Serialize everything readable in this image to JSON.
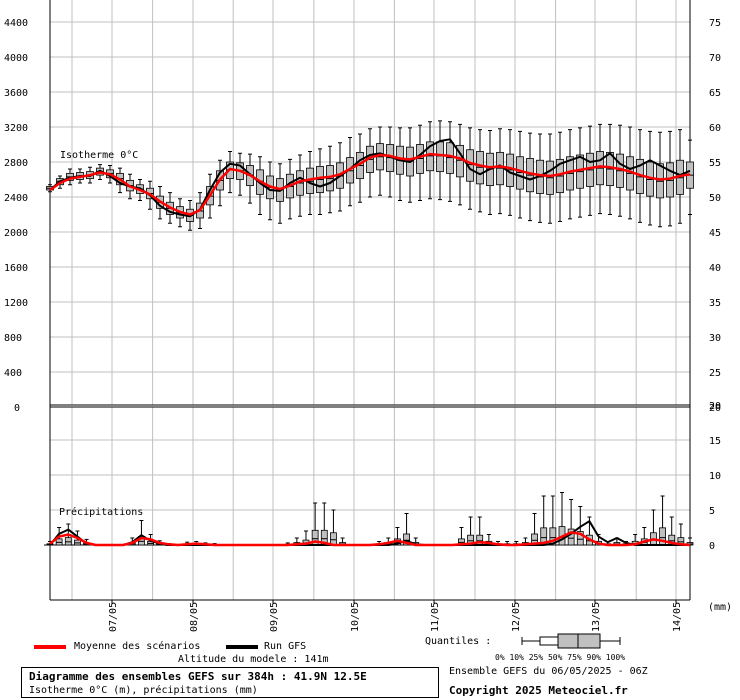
{
  "chart_data": [
    {
      "type": "boxplot+line",
      "panel": "isotherm",
      "title": "Isotherme 0°C",
      "ylim": [
        0,
        4600
      ],
      "yticks_left": [
        "4400",
        "4000",
        "3600",
        "3200",
        "2800",
        "2400",
        "2000",
        "1600",
        "1200",
        "800",
        "400",
        "0"
      ],
      "yticks_right": [
        "75",
        "70",
        "65",
        "60",
        "55",
        "50",
        "45",
        "40",
        "35",
        "30",
        "25",
        "20"
      ],
      "x_hours": [
        0,
        6,
        12,
        18,
        24,
        30,
        36,
        42,
        48,
        54,
        60,
        66,
        72,
        78,
        84,
        90,
        96,
        102,
        108,
        114,
        120,
        126,
        132,
        138,
        144,
        150,
        156,
        162,
        168,
        174,
        180,
        186,
        192,
        198,
        204,
        210,
        216,
        222,
        228,
        234,
        240,
        246,
        252,
        258,
        264,
        270,
        276,
        282,
        288,
        294,
        300,
        306,
        312,
        318,
        324,
        330,
        336,
        342,
        348,
        354,
        360,
        366,
        372,
        378,
        384
      ],
      "series": [
        {
          "name": "Moyenne des scénarios",
          "color": "#ff0000",
          "values": [
            2480,
            2560,
            2610,
            2630,
            2650,
            2680,
            2660,
            2600,
            2520,
            2480,
            2430,
            2350,
            2280,
            2230,
            2200,
            2250,
            2420,
            2600,
            2720,
            2700,
            2650,
            2580,
            2520,
            2490,
            2530,
            2580,
            2600,
            2620,
            2630,
            2660,
            2720,
            2780,
            2850,
            2880,
            2870,
            2840,
            2830,
            2860,
            2890,
            2880,
            2870,
            2840,
            2790,
            2760,
            2740,
            2750,
            2730,
            2700,
            2670,
            2650,
            2640,
            2660,
            2690,
            2710,
            2730,
            2750,
            2740,
            2720,
            2690,
            2650,
            2620,
            2600,
            2610,
            2640,
            2660
          ]
        },
        {
          "name": "Run GFS",
          "color": "#000000",
          "values": [
            2480,
            2580,
            2620,
            2640,
            2640,
            2700,
            2640,
            2560,
            2520,
            2500,
            2420,
            2300,
            2230,
            2200,
            2180,
            2260,
            2480,
            2680,
            2780,
            2760,
            2660,
            2560,
            2480,
            2470,
            2560,
            2620,
            2560,
            2520,
            2560,
            2640,
            2720,
            2820,
            2880,
            2900,
            2860,
            2820,
            2800,
            2880,
            2980,
            3040,
            3060,
            2900,
            2720,
            2660,
            2720,
            2760,
            2680,
            2640,
            2600,
            2640,
            2700,
            2780,
            2820,
            2860,
            2800,
            2820,
            2900,
            2780,
            2720,
            2760,
            2820,
            2760,
            2700,
            2650,
            2700
          ]
        }
      ],
      "boxes": [
        [
          2460,
          2480,
          2500,
          2520,
          2540
        ],
        [
          2500,
          2540,
          2580,
          2610,
          2640
        ],
        [
          2540,
          2590,
          2630,
          2670,
          2720
        ],
        [
          2560,
          2600,
          2640,
          2680,
          2720
        ],
        [
          2560,
          2610,
          2650,
          2690,
          2740
        ],
        [
          2600,
          2650,
          2690,
          2730,
          2770
        ],
        [
          2560,
          2620,
          2670,
          2710,
          2760
        ],
        [
          2450,
          2540,
          2610,
          2670,
          2730
        ],
        [
          2380,
          2470,
          2530,
          2590,
          2660
        ],
        [
          2360,
          2440,
          2490,
          2540,
          2600
        ],
        [
          2260,
          2380,
          2440,
          2500,
          2580
        ],
        [
          2150,
          2270,
          2340,
          2410,
          2520
        ],
        [
          2100,
          2200,
          2270,
          2340,
          2450
        ],
        [
          2060,
          2160,
          2220,
          2290,
          2380
        ],
        [
          2020,
          2120,
          2190,
          2260,
          2360
        ],
        [
          2040,
          2160,
          2240,
          2330,
          2450
        ],
        [
          2160,
          2310,
          2410,
          2520,
          2660
        ],
        [
          2300,
          2480,
          2590,
          2700,
          2820
        ],
        [
          2450,
          2610,
          2710,
          2800,
          2920
        ],
        [
          2420,
          2600,
          2700,
          2790,
          2900
        ],
        [
          2330,
          2530,
          2650,
          2760,
          2890
        ],
        [
          2200,
          2430,
          2580,
          2710,
          2860
        ],
        [
          2140,
          2380,
          2510,
          2640,
          2800
        ],
        [
          2100,
          2350,
          2480,
          2610,
          2780
        ],
        [
          2150,
          2390,
          2520,
          2660,
          2830
        ],
        [
          2180,
          2420,
          2560,
          2700,
          2880
        ],
        [
          2200,
          2440,
          2580,
          2730,
          2920
        ],
        [
          2200,
          2450,
          2600,
          2750,
          2950
        ],
        [
          2220,
          2470,
          2610,
          2760,
          2980
        ],
        [
          2240,
          2500,
          2640,
          2790,
          3020
        ],
        [
          2300,
          2560,
          2700,
          2850,
          3080
        ],
        [
          2340,
          2610,
          2760,
          2910,
          3120
        ],
        [
          2400,
          2680,
          2830,
          2980,
          3180
        ],
        [
          2420,
          2710,
          2860,
          3010,
          3200
        ],
        [
          2400,
          2690,
          2850,
          3000,
          3200
        ],
        [
          2360,
          2660,
          2820,
          2980,
          3190
        ],
        [
          2340,
          2640,
          2810,
          2970,
          3190
        ],
        [
          2360,
          2670,
          2840,
          3000,
          3220
        ],
        [
          2380,
          2700,
          2870,
          3030,
          3260
        ],
        [
          2370,
          2690,
          2870,
          3030,
          3270
        ],
        [
          2350,
          2670,
          2850,
          3020,
          3260
        ],
        [
          2310,
          2630,
          2820,
          2990,
          3230
        ],
        [
          2260,
          2580,
          2770,
          2940,
          3190
        ],
        [
          2230,
          2550,
          2740,
          2920,
          3170
        ],
        [
          2200,
          2530,
          2720,
          2900,
          3160
        ],
        [
          2210,
          2540,
          2730,
          2910,
          3180
        ],
        [
          2190,
          2520,
          2710,
          2890,
          3170
        ],
        [
          2160,
          2490,
          2680,
          2860,
          3150
        ],
        [
          2130,
          2460,
          2650,
          2840,
          3130
        ],
        [
          2110,
          2440,
          2630,
          2820,
          3120
        ],
        [
          2100,
          2430,
          2620,
          2810,
          3120
        ],
        [
          2120,
          2450,
          2640,
          2830,
          3140
        ],
        [
          2150,
          2480,
          2670,
          2860,
          3170
        ],
        [
          2170,
          2500,
          2690,
          2880,
          3190
        ],
        [
          2190,
          2520,
          2710,
          2900,
          3210
        ],
        [
          2210,
          2540,
          2730,
          2920,
          3230
        ],
        [
          2200,
          2530,
          2720,
          2910,
          3230
        ],
        [
          2180,
          2510,
          2700,
          2890,
          3220
        ],
        [
          2150,
          2480,
          2670,
          2860,
          3200
        ],
        [
          2110,
          2440,
          2630,
          2830,
          3170
        ],
        [
          2080,
          2410,
          2600,
          2800,
          3150
        ],
        [
          2060,
          2390,
          2580,
          2780,
          3140
        ],
        [
          2070,
          2400,
          2590,
          2790,
          3150
        ],
        [
          2100,
          2430,
          2620,
          2820,
          3170
        ],
        [
          2200,
          2500,
          2650,
          2800,
          3050
        ]
      ]
    },
    {
      "type": "boxplot+line",
      "panel": "precipitation",
      "title": "Précipitations",
      "unit": "(mm)",
      "ylim": [
        -8,
        20
      ],
      "yticks_right": [
        "20",
        "15",
        "10",
        "5",
        "0"
      ],
      "x_labels": [
        "07/05",
        "08/05",
        "09/05",
        "10/05",
        "11/05",
        "12/05",
        "13/05",
        "14/05"
      ],
      "series": [
        {
          "name": "Moyenne des scénarios",
          "color": "#ff0000",
          "values": [
            0.2,
            1.2,
            1.5,
            1.0,
            0.3,
            0,
            0,
            0,
            0,
            0.3,
            1.0,
            0.8,
            0.3,
            0.1,
            0,
            0.1,
            0.2,
            0.1,
            0,
            0,
            0,
            0,
            0,
            0,
            0,
            0,
            0,
            0.1,
            0.2,
            0.5,
            0.3,
            0,
            0,
            0,
            0,
            0,
            0.1,
            0.3,
            0.6,
            0.3,
            0,
            0,
            0,
            0,
            0,
            0.1,
            0.2,
            0.4,
            0.3,
            0.1,
            0,
            0,
            0.1,
            0.2,
            0.3,
            0.6,
            1.2,
            1.8,
            1.6,
            0.8,
            0.2,
            0,
            0,
            0,
            0.1,
            0.5,
            0.8,
            0.6,
            0.3,
            0.1,
            0
          ]
        },
        {
          "name": "Run GFS",
          "color": "#000000",
          "values": [
            0,
            1.6,
            2.2,
            1.2,
            0.2,
            0,
            0,
            0,
            0,
            0.4,
            1.4,
            0.6,
            0.2,
            0,
            0,
            0,
            0,
            0,
            0,
            0,
            0,
            0,
            0,
            0,
            0,
            0,
            0,
            0,
            0,
            0,
            0,
            0,
            0,
            0,
            0,
            0,
            0,
            0,
            0.2,
            0.6,
            0.1,
            0,
            0,
            0,
            0,
            0,
            0,
            0,
            0,
            0,
            0,
            0,
            0,
            0,
            0,
            0.2,
            0.8,
            1.6,
            2.6,
            3.4,
            1.2,
            0.4,
            1.0,
            0.3,
            0,
            0,
            0,
            0,
            0,
            0,
            0
          ]
        }
      ],
      "boxes_max": [
        0.5,
        2.5,
        3.0,
        2.0,
        0.8,
        0,
        0,
        0,
        0,
        1.0,
        3.5,
        1.5,
        0.6,
        0.2,
        0,
        0.4,
        0.5,
        0.3,
        0.2,
        0,
        0,
        0,
        0,
        0,
        0,
        0,
        0.3,
        1.0,
        2.0,
        6.0,
        6.0,
        5.0,
        1.0,
        0,
        0,
        0,
        0.5,
        1.0,
        2.5,
        4.5,
        1.0,
        0,
        0,
        0,
        0,
        2.5,
        4.0,
        4.0,
        1.5,
        0.5,
        0.5,
        0.5,
        1.0,
        4.5,
        7.0,
        7.0,
        7.5,
        6.5,
        5.5,
        4.0,
        1.5,
        0.5,
        1.0,
        0.5,
        1.5,
        2.5,
        5.0,
        7.0,
        4.0,
        3.0,
        1.0
      ]
    }
  ],
  "dates": [
    "07/05",
    "08/05",
    "09/05",
    "10/05",
    "11/05",
    "12/05",
    "13/05",
    "14/05"
  ],
  "zero_left_label": "0",
  "legend": {
    "mean_label": "Moyenne des scénarios",
    "run_label": "Run GFS",
    "quantiles_label": "Quantiles :",
    "quantile_ticks": "0%  10% 25% 50% 75% 90% 100%"
  },
  "footer": {
    "altitude": "Altitude du modele : 141m",
    "ensemble": "Ensemble GEFS du 06/05/2025 - 06Z",
    "title": "Diagramme des ensembles GEFS sur 384h : 41.9N 12.5E",
    "subtitle": "Isotherme 0°C (m), précipitations (mm)",
    "copyright": "Copyright 2025 Meteociel.fr"
  },
  "colors": {
    "mean": "#ff0000",
    "run": "#000000",
    "box_fill": "#c0c0c0",
    "grid": "#c0c0c0"
  }
}
